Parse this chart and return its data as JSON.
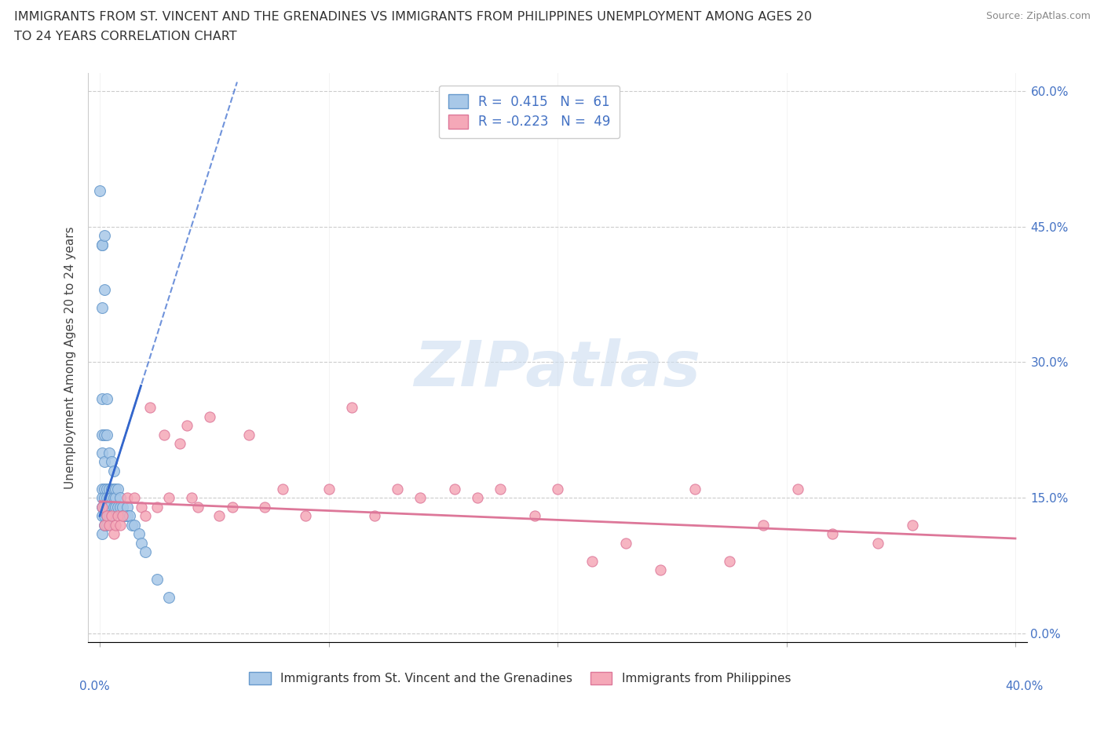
{
  "title_line1": "IMMIGRANTS FROM ST. VINCENT AND THE GRENADINES VS IMMIGRANTS FROM PHILIPPINES UNEMPLOYMENT AMONG AGES 20",
  "title_line2": "TO 24 YEARS CORRELATION CHART",
  "source": "Source: ZipAtlas.com",
  "ylabel": "Unemployment Among Ages 20 to 24 years",
  "legend1_label": "Immigrants from St. Vincent and the Grenadines",
  "legend2_label": "Immigrants from Philippines",
  "r1": 0.415,
  "n1": 61,
  "r2": -0.223,
  "n2": 49,
  "blue_color": "#a8c8e8",
  "blue_edge": "#6699cc",
  "pink_color": "#f5a8b8",
  "pink_edge": "#dd7799",
  "trend1_color": "#3366cc",
  "trend2_color": "#dd7799",
  "watermark_color": "#ccddf0",
  "right_tick_color": "#4472c4",
  "xlabel_color": "#4472c4",
  "ytick_vals": [
    0.0,
    0.15,
    0.3,
    0.45,
    0.6
  ],
  "ytick_labels_right": [
    "0.0%",
    "15.0%",
    "30.0%",
    "45.0%",
    "60.0%"
  ],
  "xlim": [
    0.0,
    0.4
  ],
  "ylim": [
    0.0,
    0.62
  ],
  "blue_x": [
    0.0,
    0.001,
    0.001,
    0.001,
    0.001,
    0.001,
    0.001,
    0.001,
    0.001,
    0.001,
    0.001,
    0.001,
    0.002,
    0.002,
    0.002,
    0.002,
    0.002,
    0.002,
    0.002,
    0.002,
    0.002,
    0.003,
    0.003,
    0.003,
    0.003,
    0.003,
    0.003,
    0.003,
    0.004,
    0.004,
    0.004,
    0.004,
    0.004,
    0.005,
    0.005,
    0.005,
    0.005,
    0.006,
    0.006,
    0.006,
    0.006,
    0.007,
    0.007,
    0.007,
    0.008,
    0.008,
    0.009,
    0.009,
    0.01,
    0.01,
    0.011,
    0.012,
    0.012,
    0.013,
    0.014,
    0.015,
    0.017,
    0.018,
    0.02,
    0.025,
    0.03
  ],
  "blue_y": [
    0.49,
    0.43,
    0.43,
    0.36,
    0.26,
    0.22,
    0.2,
    0.16,
    0.15,
    0.14,
    0.13,
    0.11,
    0.44,
    0.38,
    0.22,
    0.19,
    0.16,
    0.15,
    0.14,
    0.13,
    0.12,
    0.26,
    0.22,
    0.16,
    0.15,
    0.14,
    0.13,
    0.12,
    0.2,
    0.16,
    0.15,
    0.14,
    0.13,
    0.19,
    0.16,
    0.15,
    0.13,
    0.18,
    0.16,
    0.15,
    0.14,
    0.16,
    0.15,
    0.14,
    0.16,
    0.14,
    0.15,
    0.14,
    0.14,
    0.13,
    0.13,
    0.14,
    0.13,
    0.13,
    0.12,
    0.12,
    0.11,
    0.1,
    0.09,
    0.06,
    0.04
  ],
  "pink_x": [
    0.001,
    0.002,
    0.003,
    0.004,
    0.005,
    0.006,
    0.007,
    0.008,
    0.009,
    0.01,
    0.012,
    0.015,
    0.018,
    0.02,
    0.022,
    0.025,
    0.028,
    0.03,
    0.035,
    0.038,
    0.04,
    0.043,
    0.048,
    0.052,
    0.058,
    0.065,
    0.072,
    0.08,
    0.09,
    0.1,
    0.11,
    0.12,
    0.13,
    0.14,
    0.155,
    0.165,
    0.175,
    0.19,
    0.2,
    0.215,
    0.23,
    0.245,
    0.26,
    0.275,
    0.29,
    0.305,
    0.32,
    0.34,
    0.355
  ],
  "pink_y": [
    0.14,
    0.12,
    0.13,
    0.12,
    0.13,
    0.11,
    0.12,
    0.13,
    0.12,
    0.13,
    0.15,
    0.15,
    0.14,
    0.13,
    0.25,
    0.14,
    0.22,
    0.15,
    0.21,
    0.23,
    0.15,
    0.14,
    0.24,
    0.13,
    0.14,
    0.22,
    0.14,
    0.16,
    0.13,
    0.16,
    0.25,
    0.13,
    0.16,
    0.15,
    0.16,
    0.15,
    0.16,
    0.13,
    0.16,
    0.08,
    0.1,
    0.07,
    0.16,
    0.08,
    0.12,
    0.16,
    0.11,
    0.1,
    0.12
  ],
  "blue_trend_x": [
    0.0,
    0.025
  ],
  "blue_trend_slope": 8.0,
  "blue_trend_intercept": 0.13,
  "pink_trend_x_start": 0.0,
  "pink_trend_x_end": 0.4,
  "pink_trend_y_start": 0.146,
  "pink_trend_y_end": 0.105
}
